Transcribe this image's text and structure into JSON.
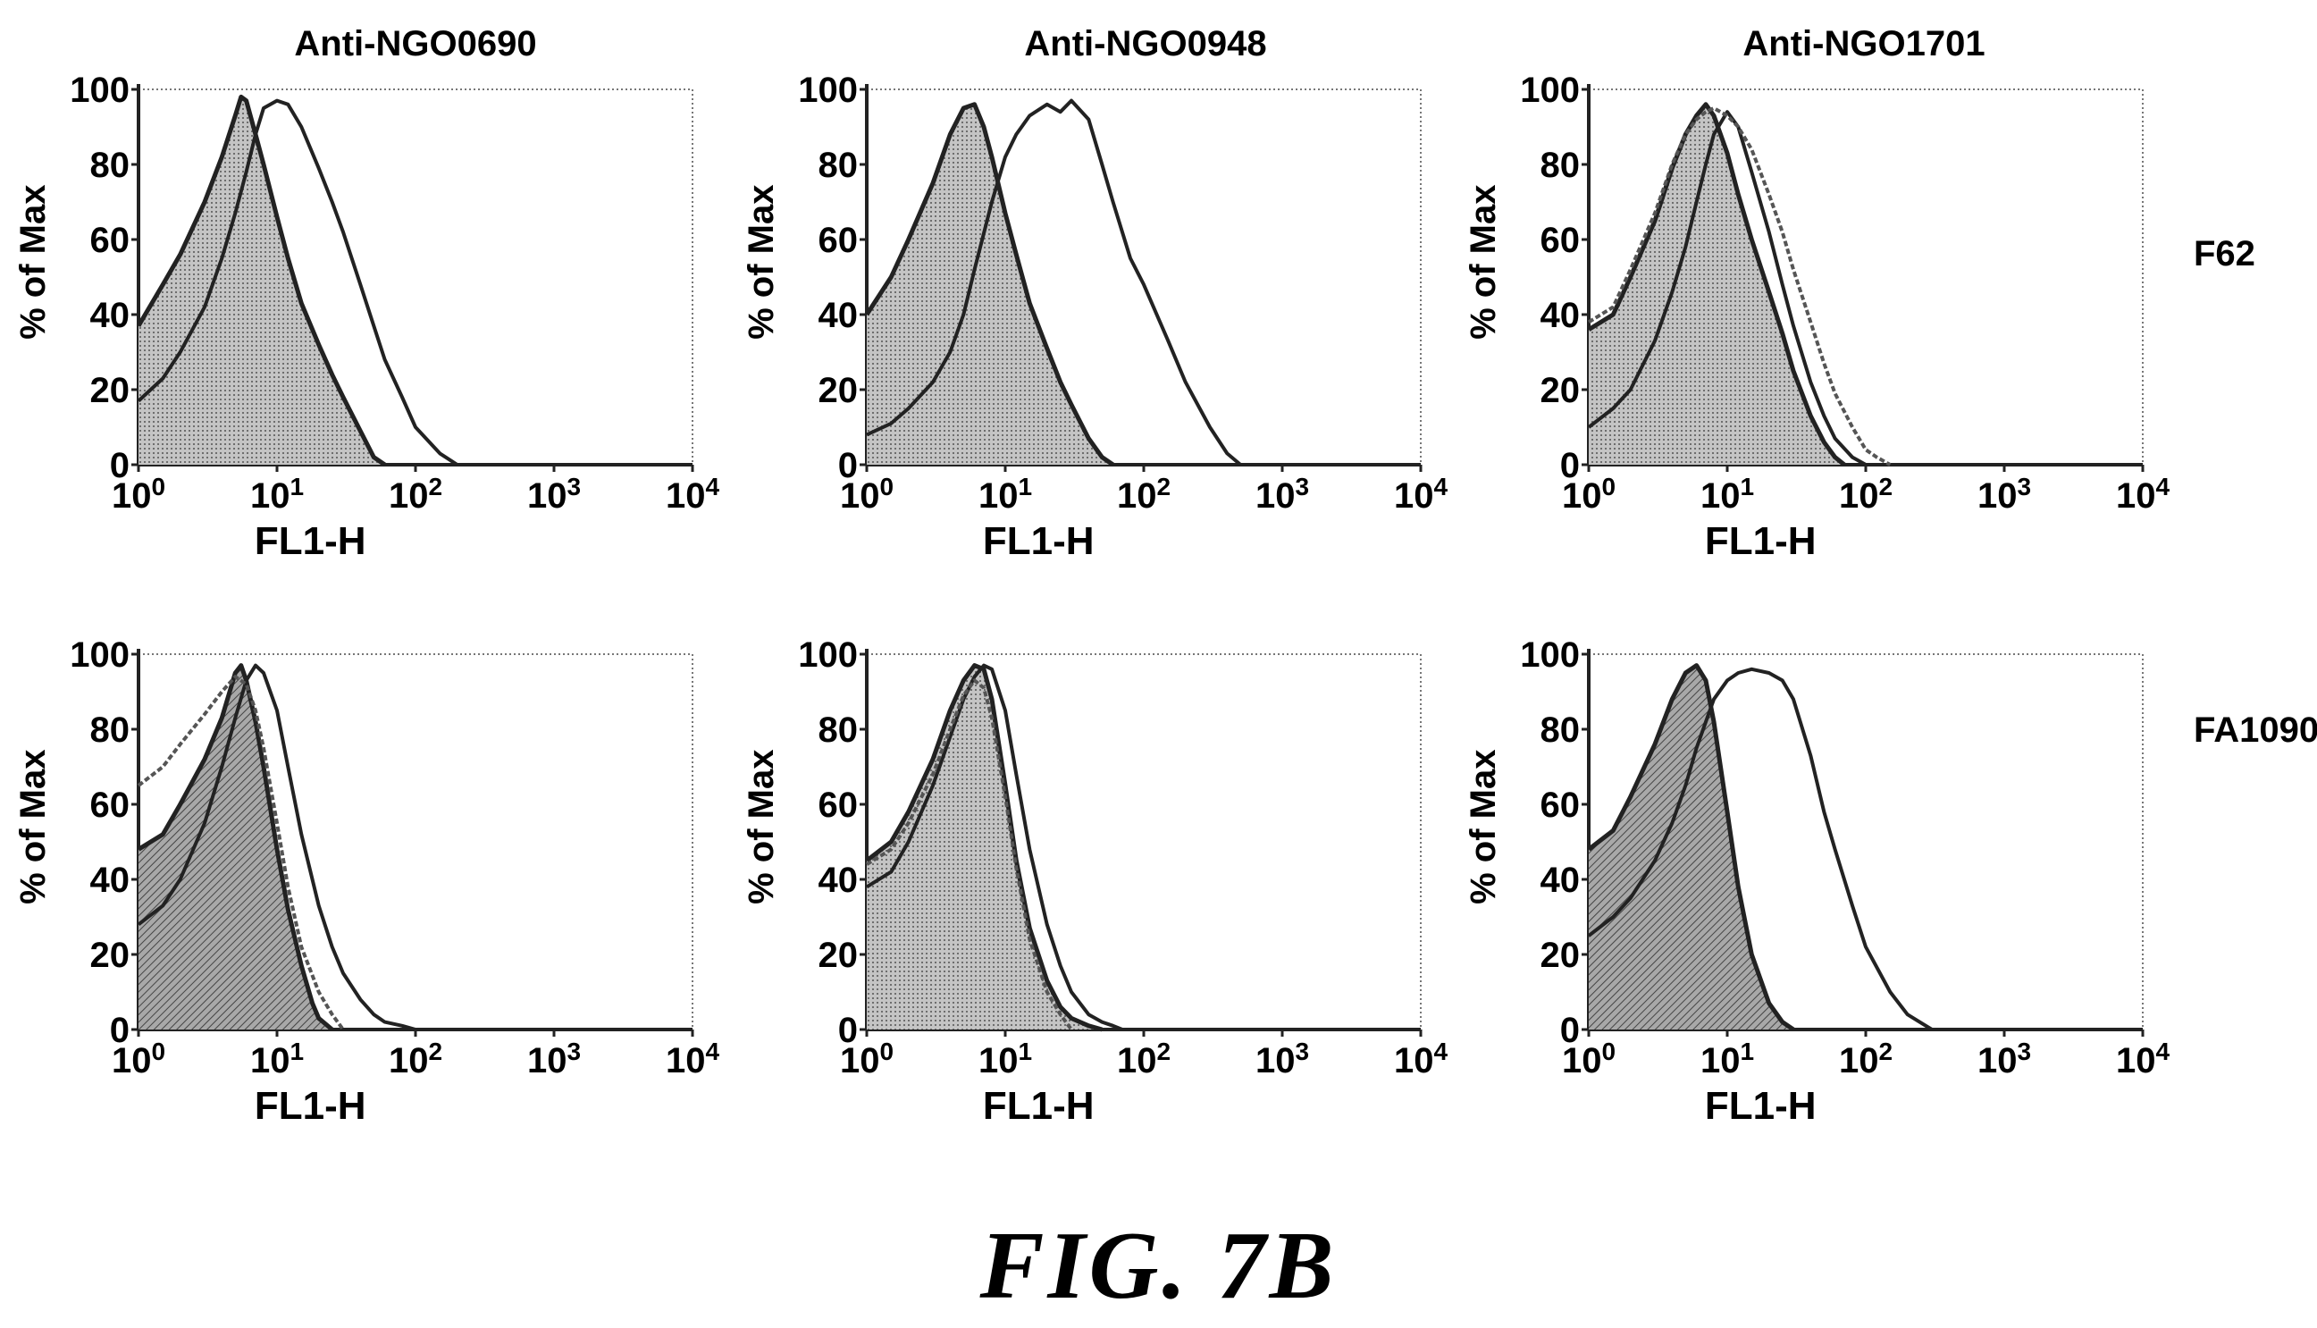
{
  "figure_label": "FIG. 7B",
  "colors": {
    "ink": "#222222",
    "fill": "#9a9a9a",
    "frame": "#777777"
  },
  "column_titles": [
    "Anti-NGO0690",
    "Anti-NGO0948",
    "Anti-NGO1701"
  ],
  "row_labels": [
    "F62",
    "FA1090"
  ],
  "chart_data": [
    {
      "type": "area",
      "title": "Anti-NGO0690",
      "row": "F62",
      "xlabel": "FL1-H",
      "ylabel": "% of Max",
      "xscale": "log",
      "xlim": [
        1,
        10000
      ],
      "ylim": [
        0,
        100
      ],
      "xticks": [
        "10^0",
        "10^1",
        "10^2",
        "10^3",
        "10^4"
      ],
      "yticks": [
        "0",
        "20",
        "40",
        "60",
        "80",
        "100"
      ],
      "series": [
        {
          "style": "filled",
          "x": [
            1,
            1.5,
            2,
            3,
            4,
            5,
            5.5,
            6,
            7,
            8,
            10,
            12,
            15,
            20,
            25,
            30,
            40,
            50,
            60
          ],
          "y": [
            37,
            48,
            56,
            70,
            82,
            93,
            98,
            97,
            88,
            80,
            66,
            55,
            43,
            32,
            24,
            18,
            9,
            2,
            0
          ]
        },
        {
          "style": "outline",
          "x": [
            1,
            1.5,
            2,
            3,
            4,
            5,
            6,
            7,
            8,
            10,
            12,
            15,
            20,
            25,
            30,
            40,
            50,
            60,
            80,
            100,
            150,
            200
          ],
          "y": [
            17,
            23,
            30,
            42,
            55,
            67,
            78,
            88,
            95,
            97,
            96,
            90,
            79,
            70,
            62,
            48,
            37,
            28,
            18,
            10,
            3,
            0
          ]
        }
      ]
    },
    {
      "type": "area",
      "title": "Anti-NGO0948",
      "row": "F62",
      "xlabel": "FL1-H",
      "ylabel": "% of Max",
      "xscale": "log",
      "xlim": [
        1,
        10000
      ],
      "ylim": [
        0,
        100
      ],
      "xticks": [
        "10^0",
        "10^1",
        "10^2",
        "10^3",
        "10^4"
      ],
      "yticks": [
        "0",
        "20",
        "40",
        "60",
        "80",
        "100"
      ],
      "series": [
        {
          "style": "filled",
          "x": [
            1,
            1.5,
            2,
            3,
            4,
            5,
            6,
            7,
            8,
            10,
            12,
            15,
            20,
            25,
            30,
            40,
            50,
            60
          ],
          "y": [
            40,
            50,
            60,
            75,
            88,
            95,
            96,
            90,
            82,
            67,
            56,
            43,
            31,
            22,
            16,
            7,
            2,
            0
          ]
        },
        {
          "style": "outline",
          "x": [
            1,
            1.5,
            2,
            3,
            4,
            5,
            6,
            8,
            10,
            12,
            15,
            20,
            25,
            30,
            40,
            50,
            60,
            80,
            100,
            150,
            200,
            300,
            400,
            500
          ],
          "y": [
            8,
            11,
            15,
            22,
            30,
            40,
            52,
            70,
            82,
            88,
            93,
            96,
            94,
            97,
            92,
            80,
            70,
            55,
            48,
            33,
            22,
            10,
            3,
            0
          ]
        }
      ]
    },
    {
      "type": "area",
      "title": "Anti-NGO1701",
      "row": "F62",
      "xlabel": "FL1-H",
      "ylabel": "% of Max",
      "xscale": "log",
      "xlim": [
        1,
        10000
      ],
      "ylim": [
        0,
        100
      ],
      "xticks": [
        "10^0",
        "10^1",
        "10^2",
        "10^3",
        "10^4"
      ],
      "yticks": [
        "0",
        "20",
        "40",
        "60",
        "80",
        "100"
      ],
      "series": [
        {
          "style": "filled",
          "x": [
            1,
            1.5,
            2,
            3,
            4,
            5,
            6,
            7,
            8,
            10,
            12,
            15,
            20,
            25,
            30,
            40,
            50,
            60,
            70
          ],
          "y": [
            36,
            40,
            50,
            65,
            79,
            88,
            93,
            96,
            93,
            83,
            72,
            60,
            46,
            35,
            25,
            13,
            6,
            2,
            0
          ]
        },
        {
          "style": "outline",
          "x": [
            1,
            1.5,
            2,
            3,
            4,
            5,
            6,
            7,
            8,
            10,
            12,
            15,
            20,
            25,
            30,
            40,
            50,
            60,
            80,
            100
          ],
          "y": [
            10,
            15,
            20,
            33,
            46,
            58,
            70,
            80,
            88,
            94,
            90,
            78,
            62,
            48,
            37,
            22,
            13,
            7,
            2,
            0
          ]
        },
        {
          "style": "outline",
          "x": [
            1,
            1.5,
            2,
            3,
            4,
            5,
            6,
            7,
            8,
            10,
            12,
            15,
            20,
            25,
            30,
            40,
            50,
            60,
            80,
            100,
            120,
            150
          ],
          "y": [
            38,
            42,
            52,
            67,
            80,
            88,
            92,
            94,
            95,
            93,
            90,
            84,
            72,
            62,
            52,
            38,
            27,
            19,
            10,
            4,
            2,
            0
          ]
        }
      ]
    },
    {
      "type": "area",
      "title": "Anti-NGO0690",
      "row": "FA1090",
      "xlabel": "FL1-H",
      "ylabel": "% of Max",
      "xscale": "log",
      "xlim": [
        1,
        10000
      ],
      "ylim": [
        0,
        100
      ],
      "xticks": [
        "10^0",
        "10^1",
        "10^2",
        "10^3",
        "10^4"
      ],
      "yticks": [
        "0",
        "20",
        "40",
        "60",
        "80",
        "100"
      ],
      "series": [
        {
          "style": "filled",
          "x": [
            1,
            1.5,
            2,
            3,
            4,
            5,
            5.5,
            6,
            7,
            8,
            10,
            12,
            15,
            18,
            20,
            25
          ],
          "y": [
            48,
            52,
            60,
            72,
            83,
            95,
            97,
            93,
            82,
            70,
            48,
            32,
            17,
            7,
            3,
            0
          ]
        },
        {
          "style": "outline",
          "x": [
            1,
            1.5,
            2,
            3,
            4,
            5,
            6,
            7,
            8,
            10,
            12,
            15,
            20,
            25,
            30,
            40,
            50,
            60,
            80,
            100
          ],
          "y": [
            28,
            33,
            40,
            55,
            70,
            83,
            93,
            97,
            95,
            85,
            70,
            52,
            33,
            22,
            15,
            8,
            4,
            2,
            1,
            0
          ]
        },
        {
          "style": "outline",
          "x": [
            1,
            1.5,
            2,
            3,
            4,
            5,
            6,
            7,
            8,
            10,
            12,
            15,
            20,
            25,
            30
          ],
          "y": [
            65,
            70,
            76,
            84,
            90,
            94,
            92,
            85,
            75,
            55,
            38,
            22,
            10,
            4,
            0
          ]
        }
      ]
    },
    {
      "type": "area",
      "title": "Anti-NGO0948",
      "row": "FA1090",
      "xlabel": "FL1-H",
      "ylabel": "% of Max",
      "xscale": "log",
      "xlim": [
        1,
        10000
      ],
      "ylim": [
        0,
        100
      ],
      "xticks": [
        "10^0",
        "10^1",
        "10^2",
        "10^3",
        "10^4"
      ],
      "yticks": [
        "0",
        "20",
        "40",
        "60",
        "80",
        "100"
      ],
      "series": [
        {
          "style": "filled",
          "x": [
            1,
            1.5,
            2,
            3,
            4,
            5,
            6,
            7,
            8,
            10,
            12,
            15,
            20,
            25,
            30,
            40,
            50
          ],
          "y": [
            45,
            50,
            58,
            72,
            85,
            93,
            97,
            96,
            88,
            65,
            45,
            27,
            13,
            6,
            3,
            1,
            0
          ]
        },
        {
          "style": "outline",
          "x": [
            1,
            1.5,
            2,
            3,
            4,
            5,
            6,
            7,
            8,
            10,
            12,
            15,
            20,
            25,
            30,
            40,
            50,
            60,
            70
          ],
          "y": [
            38,
            42,
            50,
            65,
            78,
            88,
            94,
            97,
            96,
            85,
            68,
            48,
            28,
            17,
            10,
            4,
            2,
            1,
            0
          ]
        },
        {
          "style": "outline",
          "x": [
            1,
            1.5,
            2,
            3,
            4,
            5,
            6,
            7,
            8,
            10,
            12,
            15,
            20,
            25,
            30
          ],
          "y": [
            44,
            48,
            55,
            68,
            80,
            89,
            93,
            91,
            83,
            62,
            43,
            24,
            10,
            4,
            0
          ]
        }
      ]
    },
    {
      "type": "area",
      "title": "Anti-NGO1701",
      "row": "FA1090",
      "xlabel": "FL1-H",
      "ylabel": "% of Max",
      "xscale": "log",
      "xlim": [
        1,
        10000
      ],
      "ylim": [
        0,
        100
      ],
      "xticks": [
        "10^0",
        "10^1",
        "10^2",
        "10^3",
        "10^4"
      ],
      "yticks": [
        "0",
        "20",
        "40",
        "60",
        "80",
        "100"
      ],
      "series": [
        {
          "style": "filled",
          "x": [
            1,
            1.5,
            2,
            3,
            4,
            5,
            6,
            7,
            8,
            10,
            12,
            15,
            20,
            25,
            30
          ],
          "y": [
            48,
            53,
            62,
            76,
            88,
            95,
            97,
            93,
            82,
            58,
            38,
            20,
            7,
            2,
            0
          ]
        },
        {
          "style": "outline",
          "x": [
            1,
            1.5,
            2,
            3,
            4,
            5,
            6,
            8,
            10,
            12,
            15,
            20,
            25,
            30,
            40,
            50,
            60,
            80,
            100,
            150,
            200,
            300
          ],
          "y": [
            25,
            30,
            35,
            45,
            55,
            65,
            75,
            88,
            93,
            95,
            96,
            95,
            93,
            88,
            73,
            58,
            48,
            33,
            22,
            10,
            4,
            0
          ]
        }
      ]
    }
  ]
}
